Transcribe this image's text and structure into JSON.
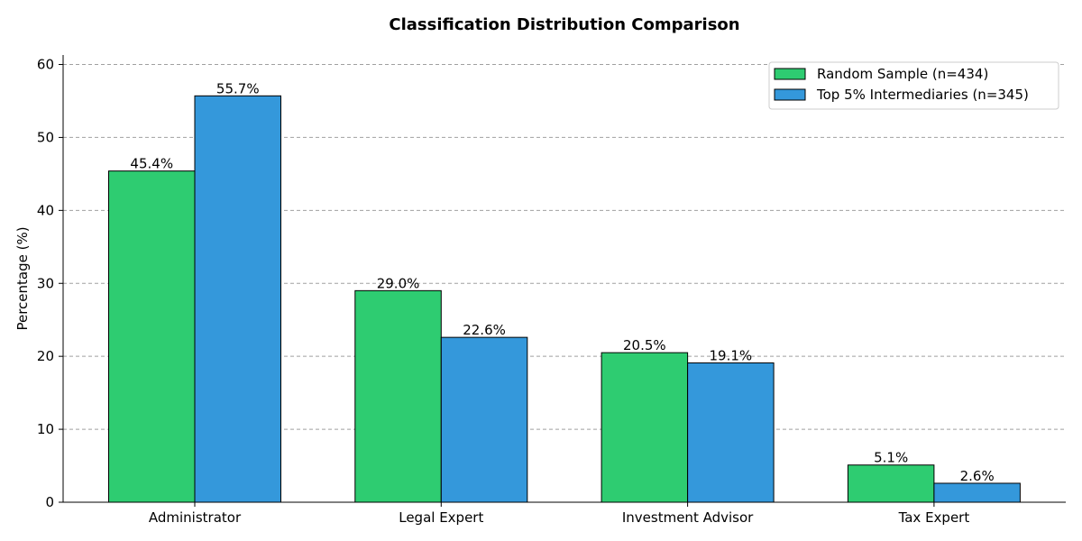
{
  "chart_data": {
    "type": "bar",
    "title": "Classification Distribution Comparison",
    "xlabel": "",
    "ylabel": "Percentage (%)",
    "categories": [
      "Administrator",
      "Legal Expert",
      "Investment Advisor",
      "Tax Expert"
    ],
    "series": [
      {
        "name": "Random Sample (n=434)",
        "color": "#2ecc71",
        "values": [
          45.4,
          29.0,
          20.5,
          5.1
        ],
        "labels": [
          "45.4%",
          "29.0%",
          "20.5%",
          "5.1%"
        ]
      },
      {
        "name": "Top 5% Intermediaries (n=345)",
        "color": "#3498db",
        "values": [
          55.7,
          22.6,
          19.1,
          2.6
        ],
        "labels": [
          "55.7%",
          "22.6%",
          "19.1%",
          "2.6%"
        ]
      }
    ],
    "ylim": [
      0,
      61.3
    ],
    "yticks": [
      0,
      10,
      20,
      30,
      40,
      50,
      60
    ],
    "grid": true,
    "legend_position": "top-right"
  }
}
